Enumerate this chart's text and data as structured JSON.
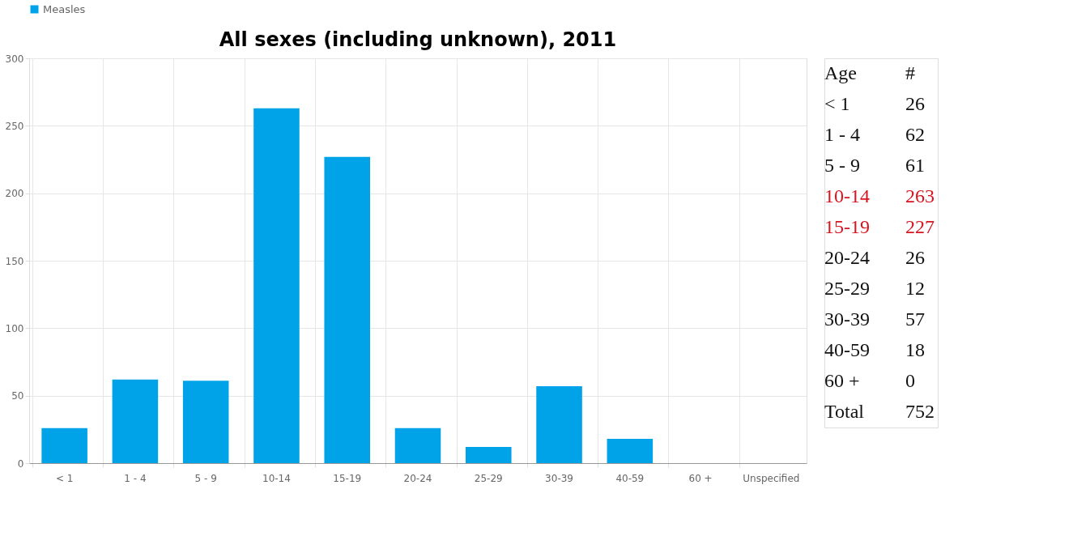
{
  "chart_data": [
    {
      "type": "bar",
      "title": "All sexes (including unknown), 2011",
      "categories": [
        "< 1",
        "1 - 4",
        "5 - 9",
        "10-14",
        "15-19",
        "20-24",
        "25-29",
        "30-39",
        "40-59",
        "60 +",
        "Unspecified"
      ],
      "series": [
        {
          "name": "Measles",
          "color": "#00a2e8",
          "values": [
            26,
            62,
            61,
            263,
            227,
            26,
            12,
            57,
            18,
            0,
            null
          ]
        }
      ],
      "ylim": [
        0,
        300
      ],
      "yticks": [
        0,
        50,
        100,
        150,
        200,
        250,
        300
      ],
      "grid": true,
      "legend": "top"
    },
    {
      "type": "other",
      "categories": [
        "< 1",
        "1 - 4",
        "5 - 9",
        "10-14",
        "15-19",
        "20-24",
        "25-29",
        "30-39",
        "40-59",
        "60 +"
      ],
      "values": [
        26,
        62,
        61,
        263,
        227,
        26,
        12,
        57,
        18,
        0
      ],
      "colors": [
        "#111111",
        "#111111",
        "#111111",
        "#d7141f",
        "#d7141f",
        "#111111",
        "#111111",
        "#111111",
        "#111111",
        "#111111"
      ],
      "data_labels": true,
      "annotations": [
        "Age",
        "#",
        "Total",
        "752"
      ]
    }
  ]
}
